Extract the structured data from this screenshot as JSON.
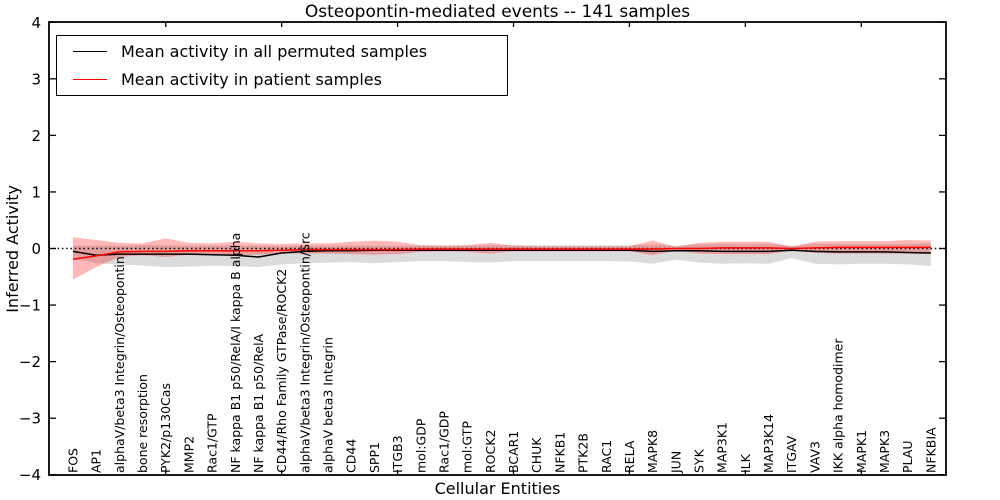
{
  "title": "Osteopontin-mediated events -- 141 samples",
  "legend": {
    "items": [
      {
        "label": "Mean activity in all permuted samples",
        "color": "#000000"
      },
      {
        "label": "Mean activity in patient samples",
        "color": "#ff0000"
      }
    ]
  },
  "chart_data": {
    "type": "line",
    "title": "Osteopontin-mediated events -- 141 samples",
    "xlabel": "Cellular Entities",
    "ylabel": "Inferred Activity",
    "ylim": [
      -4,
      4
    ],
    "y_tick_values": [
      4,
      3,
      2,
      1,
      0,
      -1,
      -2,
      -3,
      -4
    ],
    "y_tick_labels": [
      "4",
      "3",
      "2",
      "1",
      "0",
      "−1",
      "−2",
      "−3",
      "−4"
    ],
    "grid": false,
    "legend_position": "upper left",
    "zero_line": {
      "style": "dotted",
      "color": "#000000",
      "y": 0
    },
    "categories": [
      "FOS",
      "AP1",
      "alphaV/beta3 Integrin/Osteopontin",
      "bone resorption",
      "PYK2/p130Cas",
      "MMP2",
      "Rac1/GTP",
      "NF kappa B1 p50/RelA/I kappa B alpha",
      "NF kappa B1 p50/RelA",
      "CD44/Rho Family GTPase/ROCK2",
      "alphaV/beta3 Integrin/Osteopontin/Src",
      "alphaV beta3 Integrin",
      "CD44",
      "SPP1",
      "ITGB3",
      "mol:GDP",
      "Rac1/GDP",
      "mol:GTP",
      "ROCK2",
      "BCAR1",
      "CHUK",
      "NFKB1",
      "PTK2B",
      "RAC1",
      "RELA",
      "MAPK8",
      "JUN",
      "SYK",
      "MAP3K1",
      "ILK",
      "MAP3K14",
      "ITGAV",
      "VAV3",
      "IKK alpha homodimer",
      "MAPK1",
      "MAPK3",
      "PLAU",
      "NFKBIA"
    ],
    "series": [
      {
        "name": "Mean activity in all permuted samples",
        "color": "#000000",
        "band_color": "rgba(0,0,0,0.14)",
        "values": [
          -0.05,
          -0.12,
          -0.1,
          -0.1,
          -0.1,
          -0.1,
          -0.11,
          -0.12,
          -0.15,
          -0.08,
          -0.05,
          -0.04,
          -0.04,
          -0.03,
          -0.03,
          -0.03,
          -0.03,
          -0.03,
          -0.03,
          -0.03,
          -0.03,
          -0.03,
          -0.03,
          -0.03,
          -0.03,
          -0.05,
          -0.04,
          -0.04,
          -0.05,
          -0.05,
          -0.05,
          -0.03,
          -0.05,
          -0.06,
          -0.06,
          -0.06,
          -0.07,
          -0.08
        ],
        "band_upper": [
          0.05,
          0.05,
          0.05,
          0.06,
          0.06,
          0.05,
          0.05,
          0.05,
          0.05,
          0.04,
          0.05,
          0.05,
          0.05,
          0.05,
          0.05,
          0.05,
          0.05,
          0.05,
          0.06,
          0.06,
          0.06,
          0.06,
          0.06,
          0.06,
          0.06,
          0.07,
          0.05,
          0.07,
          0.08,
          0.07,
          0.08,
          0.05,
          0.08,
          0.08,
          0.08,
          0.08,
          0.08,
          0.09
        ],
        "band_lower": [
          -0.18,
          -0.26,
          -0.28,
          -0.3,
          -0.33,
          -0.32,
          -0.3,
          -0.31,
          -0.33,
          -0.28,
          -0.26,
          -0.25,
          -0.24,
          -0.26,
          -0.24,
          -0.22,
          -0.22,
          -0.24,
          -0.25,
          -0.22,
          -0.22,
          -0.22,
          -0.22,
          -0.22,
          -0.23,
          -0.27,
          -0.2,
          -0.25,
          -0.27,
          -0.26,
          -0.27,
          -0.17,
          -0.27,
          -0.28,
          -0.27,
          -0.27,
          -0.28,
          -0.31
        ]
      },
      {
        "name": "Mean activity in patient samples",
        "color": "#ff0000",
        "band_color": "rgba(255,0,0,0.28)",
        "values": [
          -0.19,
          -0.13,
          -0.06,
          -0.05,
          -0.05,
          -0.04,
          -0.04,
          -0.04,
          -0.04,
          -0.03,
          -0.02,
          -0.02,
          -0.02,
          -0.02,
          -0.02,
          -0.01,
          -0.01,
          -0.01,
          -0.01,
          -0.01,
          -0.01,
          -0.01,
          -0.01,
          -0.01,
          -0.01,
          -0.01,
          0.0,
          0.0,
          0.01,
          0.01,
          0.01,
          0.0,
          0.01,
          0.02,
          0.02,
          0.02,
          0.02,
          0.02
        ],
        "band_upper": [
          0.2,
          0.15,
          0.1,
          0.09,
          0.18,
          0.1,
          0.09,
          0.12,
          0.09,
          0.08,
          0.09,
          0.09,
          0.12,
          0.14,
          0.12,
          0.06,
          0.05,
          0.06,
          0.1,
          0.05,
          0.04,
          0.04,
          0.04,
          0.04,
          0.04,
          0.14,
          0.03,
          0.1,
          0.12,
          0.12,
          0.12,
          0.03,
          0.12,
          0.13,
          0.13,
          0.13,
          0.15,
          0.14
        ],
        "band_lower": [
          -0.55,
          -0.33,
          -0.15,
          -0.12,
          -0.15,
          -0.11,
          -0.1,
          -0.12,
          -0.11,
          -0.09,
          -0.09,
          -0.09,
          -0.1,
          -0.11,
          -0.1,
          -0.06,
          -0.05,
          -0.06,
          -0.09,
          -0.05,
          -0.05,
          -0.05,
          -0.05,
          -0.05,
          -0.05,
          -0.12,
          -0.04,
          -0.09,
          -0.1,
          -0.1,
          -0.1,
          -0.03,
          -0.08,
          -0.09,
          -0.09,
          -0.09,
          -0.09,
          -0.1
        ]
      }
    ]
  }
}
